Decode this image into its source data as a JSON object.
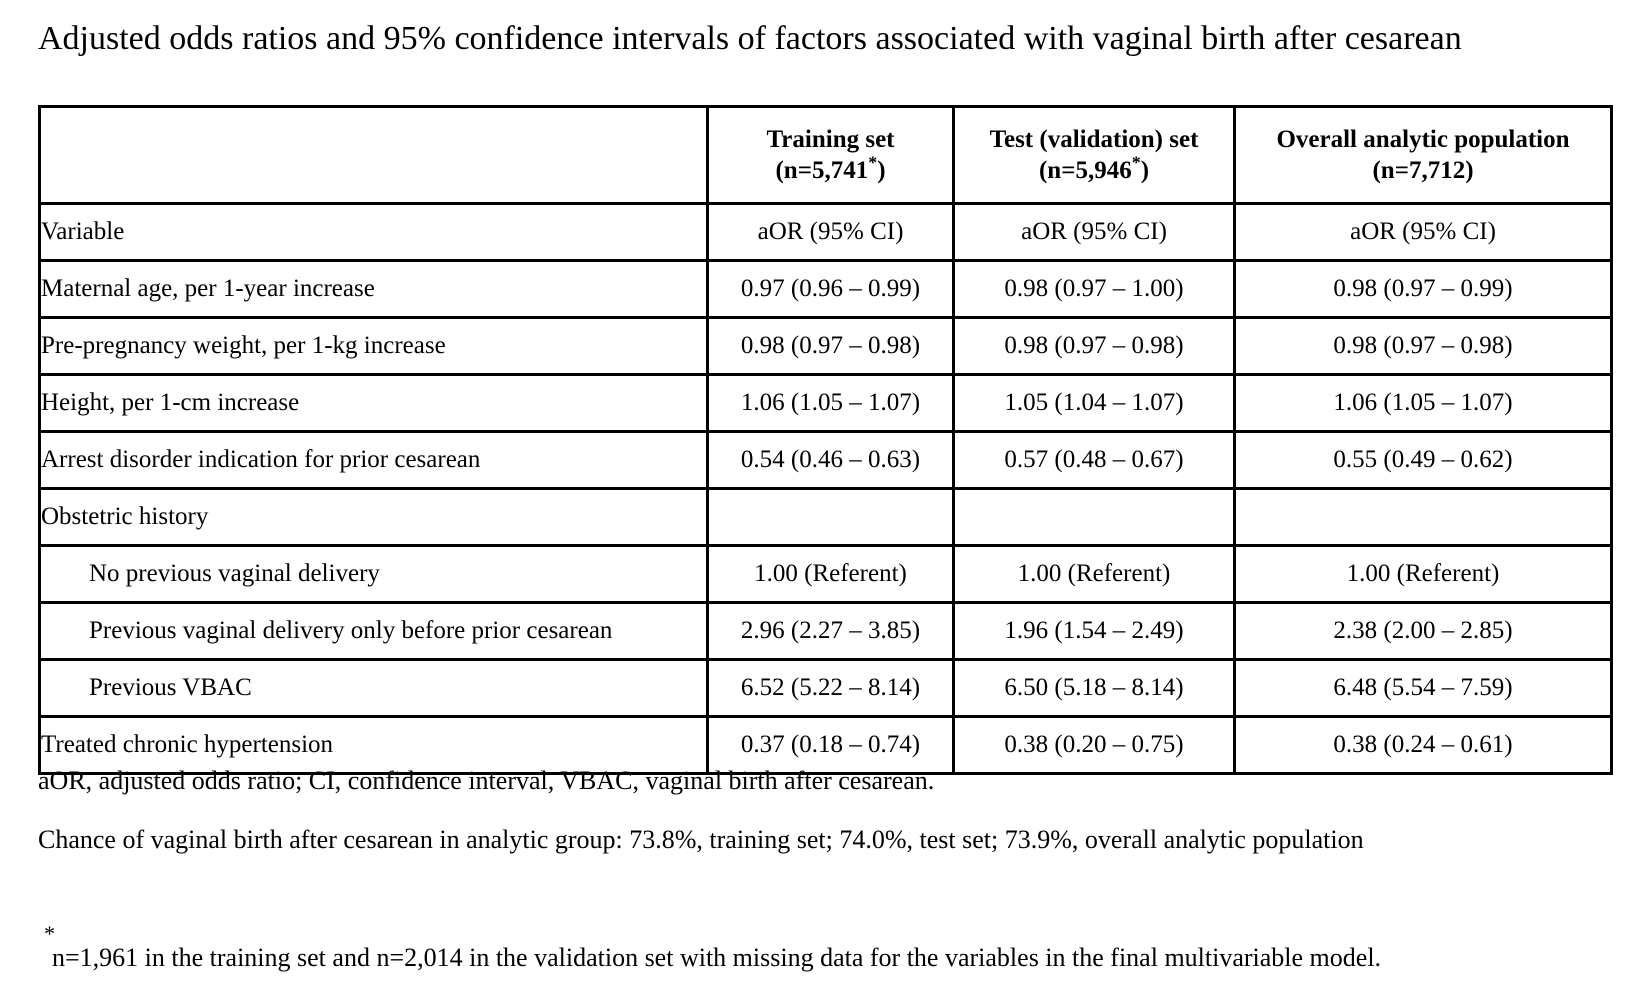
{
  "title": "Adjusted odds ratios and 95% confidence intervals of factors associated with vaginal birth after cesarean",
  "table": {
    "columns": [
      {
        "line1": "Training set",
        "line2": "(n=5,741",
        "marker": "*",
        "close": ")"
      },
      {
        "line1": "Test (validation) set",
        "line2": "(n=5,946",
        "marker": "*",
        "close": ")"
      },
      {
        "line1": "Overall analytic population",
        "line2": "(n=7,712)",
        "marker": "",
        "close": ""
      }
    ],
    "subheader": {
      "variable": "Variable",
      "measure": "aOR (95% CI)"
    },
    "rows": [
      {
        "label": "Maternal age, per 1-year increase",
        "indent": false,
        "train": "0.97 (0.96 – 0.99)",
        "test": "0.98 (0.97 – 1.00)",
        "overall": "0.98 (0.97 – 0.99)"
      },
      {
        "label": "Pre-pregnancy weight, per 1-kg increase",
        "indent": false,
        "train": "0.98 (0.97 – 0.98)",
        "test": "0.98 (0.97 – 0.98)",
        "overall": "0.98 (0.97 – 0.98)"
      },
      {
        "label": "Height, per 1-cm increase",
        "indent": false,
        "train": "1.06 (1.05 – 1.07)",
        "test": "1.05 (1.04 – 1.07)",
        "overall": "1.06 (1.05 – 1.07)"
      },
      {
        "label": "Arrest disorder indication for prior cesarean",
        "indent": false,
        "train": "0.54 (0.46 – 0.63)",
        "test": "0.57 (0.48 – 0.67)",
        "overall": "0.55 (0.49 – 0.62)"
      },
      {
        "label": "Obstetric history",
        "indent": false,
        "train": "",
        "test": "",
        "overall": ""
      },
      {
        "label": "No previous vaginal delivery",
        "indent": true,
        "train": "1.00 (Referent)",
        "test": "1.00 (Referent)",
        "overall": "1.00 (Referent)"
      },
      {
        "label": "Previous vaginal delivery only before prior cesarean",
        "indent": true,
        "train": "2.96 (2.27 – 3.85)",
        "test": "1.96 (1.54 – 2.49)",
        "overall": "2.38 (2.00 – 2.85)"
      },
      {
        "label": "Previous VBAC",
        "indent": true,
        "train": "6.52 (5.22 – 8.14)",
        "test": "6.50 (5.18 – 8.14)",
        "overall": "6.48 (5.54 – 7.59)"
      },
      {
        "label": "Treated chronic hypertension",
        "indent": false,
        "train": "0.37 (0.18 – 0.74)",
        "test": "0.38 (0.20 – 0.75)",
        "overall": "0.38 (0.24 – 0.61)"
      }
    ]
  },
  "notes": {
    "abbreviations": "aOR, adjusted odds ratio; CI, confidence interval, VBAC, vaginal birth after cesarean.",
    "chance": "Chance of vaginal birth after cesarean in analytic group: 73.8%, training set; 74.0%, test set; 73.9%, overall analytic population",
    "footnote_marker": "*",
    "footnote": "n=1,961 in the training set and n=2,014 in the validation set with missing data for the variables in the final multivariable model."
  }
}
